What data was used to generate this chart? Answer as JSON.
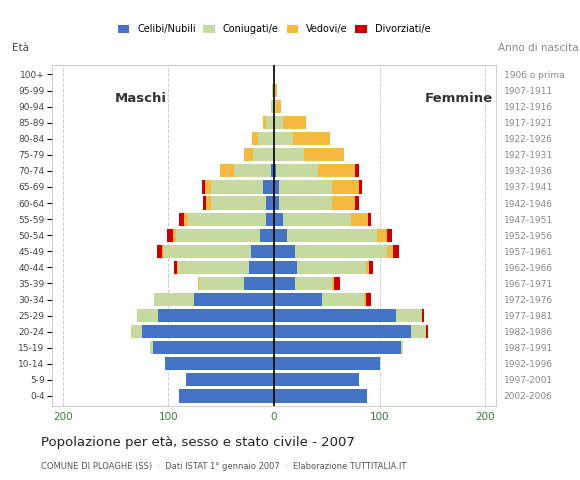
{
  "age_groups": [
    "0-4",
    "5-9",
    "10-14",
    "15-19",
    "20-24",
    "25-29",
    "30-34",
    "35-39",
    "40-44",
    "45-49",
    "50-54",
    "55-59",
    "60-64",
    "65-69",
    "70-74",
    "75-79",
    "80-84",
    "85-89",
    "90-94",
    "95-99",
    "100+"
  ],
  "birth_years": [
    "2002-2006",
    "1997-2001",
    "1992-1996",
    "1987-1991",
    "1982-1986",
    "1977-1981",
    "1972-1976",
    "1967-1971",
    "1962-1966",
    "1957-1961",
    "1952-1956",
    "1947-1951",
    "1942-1946",
    "1937-1941",
    "1932-1936",
    "1927-1931",
    "1922-1926",
    "1917-1921",
    "1912-1916",
    "1907-1911",
    "1906 o prima"
  ],
  "males": {
    "celibe": [
      90,
      83,
      103,
      115,
      125,
      110,
      76,
      28,
      24,
      22,
      13,
      8,
      8,
      10,
      3,
      0,
      0,
      0,
      0,
      0,
      0
    ],
    "coniugato": [
      0,
      0,
      0,
      2,
      10,
      20,
      38,
      43,
      67,
      82,
      80,
      73,
      52,
      50,
      35,
      20,
      15,
      8,
      3,
      2,
      0
    ],
    "vedovo": [
      0,
      0,
      0,
      0,
      0,
      0,
      0,
      1,
      1,
      2,
      3,
      4,
      4,
      5,
      13,
      8,
      6,
      2,
      0,
      0,
      0
    ],
    "divorziato": [
      0,
      0,
      0,
      0,
      0,
      0,
      0,
      0,
      3,
      5,
      5,
      5,
      3,
      3,
      0,
      0,
      0,
      0,
      0,
      0,
      0
    ]
  },
  "females": {
    "nubile": [
      88,
      80,
      100,
      120,
      130,
      115,
      45,
      20,
      22,
      20,
      12,
      8,
      5,
      5,
      2,
      0,
      0,
      0,
      0,
      0,
      0
    ],
    "coniugata": [
      0,
      0,
      0,
      2,
      14,
      25,
      40,
      35,
      65,
      87,
      85,
      65,
      50,
      50,
      40,
      28,
      18,
      8,
      2,
      1,
      0
    ],
    "vedova": [
      0,
      0,
      0,
      0,
      0,
      0,
      2,
      2,
      3,
      6,
      10,
      16,
      22,
      25,
      35,
      38,
      35,
      22,
      5,
      2,
      0
    ],
    "divorziata": [
      0,
      0,
      0,
      0,
      2,
      2,
      5,
      5,
      4,
      5,
      5,
      3,
      3,
      3,
      3,
      0,
      0,
      0,
      0,
      0,
      0
    ]
  },
  "colors": {
    "celibe": "#4472C4",
    "coniugato": "#C5D9A0",
    "vedovo": "#F5B942",
    "divorziato": "#CC0000"
  },
  "xlim": 210,
  "xticks": [
    -200,
    -100,
    0,
    100,
    200
  ],
  "title": "Popolazione per età, sesso e stato civile - 2007",
  "subtitle": "COMUNE DI PLOAGHE (SS)  ·  Dati ISTAT 1° gennaio 2007  ·  Elaborazione TUTTITALIA.IT",
  "label_maschi": "Maschi",
  "label_femmine": "Femmine",
  "label_eta": "Età",
  "label_anno": "Anno di nascita",
  "xlabel_color": "#3a7a3a",
  "age_label_color": "#444444",
  "birth_label_color": "#888888",
  "maschi_femmine_color": "#333333",
  "title_color": "#222222",
  "subtitle_color": "#555555",
  "background_color": "#ffffff",
  "grid_color": "#cccccc",
  "legend_labels": [
    "Celibi/Nubili",
    "Coniugati/e",
    "Vedovi/e",
    "Divorziati/e"
  ]
}
